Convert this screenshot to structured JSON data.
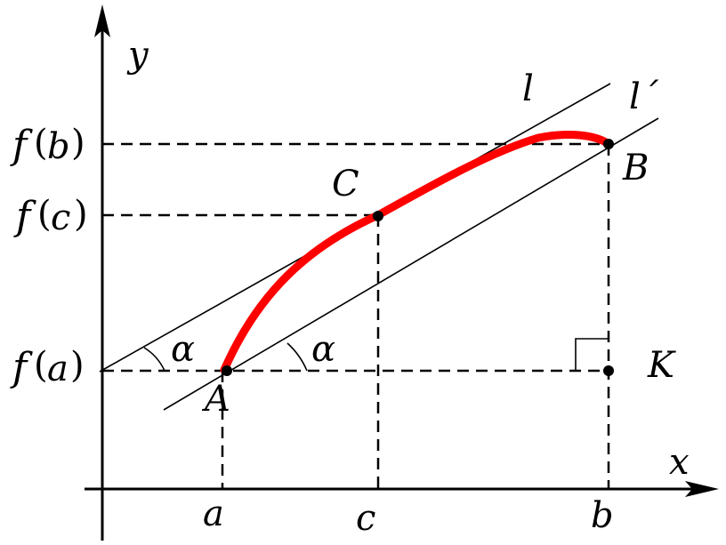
{
  "figure": {
    "axes": {
      "x_label": "x",
      "y_label": "y"
    },
    "x_ticks": {
      "a": "a",
      "c": "c",
      "b": "b"
    },
    "y_ticks": {
      "fa": "a",
      "fc": "c",
      "fb": "b",
      "f": "f"
    },
    "points": {
      "A": "A",
      "B": "B",
      "C": "C",
      "K": "K"
    },
    "lines": {
      "tangent": "l",
      "secant": "l´"
    },
    "angle": "α",
    "colors": {
      "curve": "#ff0000",
      "ink": "#000000"
    }
  }
}
